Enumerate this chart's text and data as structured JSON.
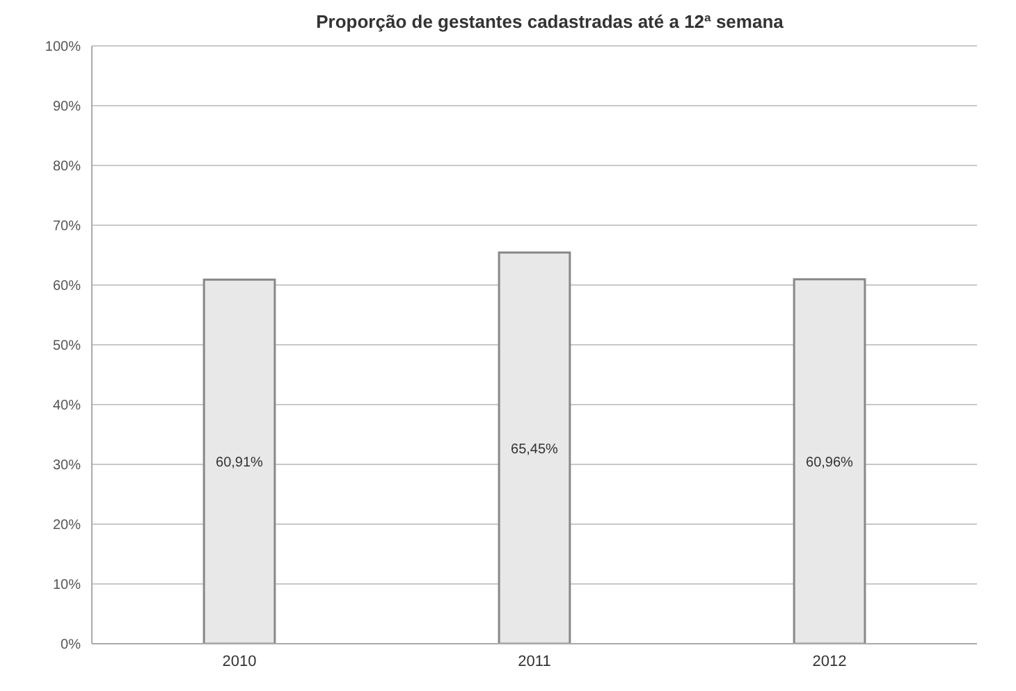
{
  "chart_data": {
    "type": "bar",
    "title": "Proporção de gestantes cadastradas até a 12ª semana",
    "categories": [
      "2010",
      "2011",
      "2012"
    ],
    "values": [
      60.91,
      65.45,
      60.96
    ],
    "value_labels": [
      "60,91%",
      "65,45%",
      "60,96%"
    ],
    "color": "#e8e8e8",
    "ylim": [
      0,
      100
    ],
    "yticks": [
      {
        "value": 0,
        "label": "0%"
      },
      {
        "value": 10,
        "label": "10%"
      },
      {
        "value": 20,
        "label": "20%"
      },
      {
        "value": 30,
        "label": "30%"
      },
      {
        "value": 40,
        "label": "40%"
      },
      {
        "value": 50,
        "label": "50%"
      },
      {
        "value": 60,
        "label": "60%"
      },
      {
        "value": 70,
        "label": "70%"
      },
      {
        "value": 80,
        "label": "80%"
      },
      {
        "value": 90,
        "label": "90%"
      },
      {
        "value": 100,
        "label": "100%"
      }
    ],
    "grid": "y"
  }
}
